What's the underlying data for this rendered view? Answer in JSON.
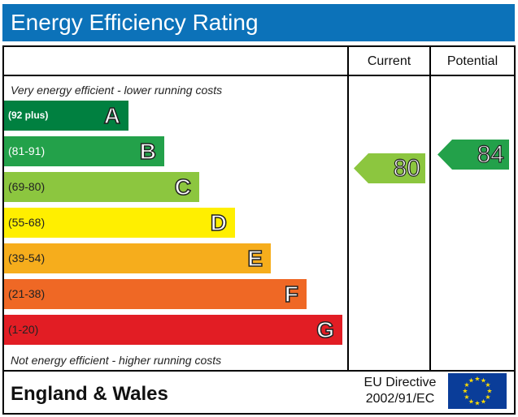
{
  "title": "Energy Efficiency Rating",
  "columns": {
    "current": "Current",
    "potential": "Potential"
  },
  "top_note": "Very energy efficient - lower running costs",
  "bottom_note": "Not energy efficient - higher running costs",
  "bands": [
    {
      "range": "(92 plus)",
      "letter": "A",
      "color": "#008040"
    },
    {
      "range": "(81-91)",
      "letter": "B",
      "color": "#23a14a"
    },
    {
      "range": "(69-80)",
      "letter": "C",
      "color": "#8cc63f"
    },
    {
      "range": "(55-68)",
      "letter": "D",
      "color": "#ffef00"
    },
    {
      "range": "(39-54)",
      "letter": "E",
      "color": "#f6ad1c"
    },
    {
      "range": "(21-38)",
      "letter": "F",
      "color": "#ef6825"
    },
    {
      "range": "(1-20)",
      "letter": "G",
      "color": "#e21d24"
    }
  ],
  "current_rating": {
    "value": "80",
    "color": "#8cc63f"
  },
  "potential_rating": {
    "value": "84",
    "color": "#23a14a"
  },
  "footer": {
    "region": "England & Wales",
    "directive_line1": "EU Directive",
    "directive_line2": "2002/91/EC",
    "flag_icon": "eu-flag-icon"
  }
}
